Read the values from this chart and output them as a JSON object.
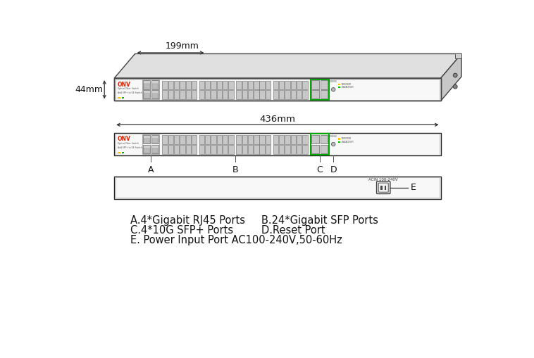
{
  "bg_color": "#ffffff",
  "dim_199": "199mm",
  "dim_44": "44mm",
  "dim_436": "436mm",
  "label_A": "A",
  "label_B": "B",
  "label_C": "C",
  "label_D": "D",
  "label_E": "E",
  "text_A": "A.4*Gigabit RJ45 Ports",
  "text_B": "B.24*Gigabit SFP Ports",
  "text_C": "C.4*10G SFP+ Ports",
  "text_D": "D.Reset Port",
  "text_E": "E. Power Input Port AC100-240V,50-60Hz",
  "onv_red": "#dd2200",
  "onv_orange": "#ff6600",
  "green_border": "#00aa00",
  "panel_bg": "#f8f8f8",
  "panel_border": "#222222",
  "chassis_top": "#e0e0e0",
  "chassis_right": "#c8c8c8",
  "chassis_border": "#444444",
  "yellow_led": "#ffcc00",
  "green_led": "#00bb00",
  "port_fill": "#d0d0d0",
  "port_edge": "#666666",
  "sfp_fill": "#c8c8c8",
  "arrow_color": "#333333"
}
